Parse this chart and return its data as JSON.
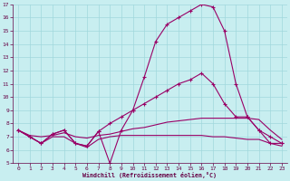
{
  "xlabel": "Windchill (Refroidissement éolien,°C)",
  "background_color": "#c8eef0",
  "line_color": "#990066",
  "grid_color": "#a0d8dc",
  "xlim": [
    -0.5,
    23.5
  ],
  "ylim": [
    5,
    17
  ],
  "xticks": [
    0,
    1,
    2,
    3,
    4,
    5,
    6,
    7,
    8,
    9,
    10,
    11,
    12,
    13,
    14,
    15,
    16,
    17,
    18,
    19,
    20,
    21,
    22,
    23
  ],
  "yticks": [
    5,
    6,
    7,
    8,
    9,
    10,
    11,
    12,
    13,
    14,
    15,
    16,
    17
  ],
  "curve_peak_x": [
    0,
    1,
    2,
    3,
    4,
    5,
    6,
    7,
    8,
    9,
    10,
    11,
    12,
    13,
    14,
    15,
    16,
    17,
    18,
    19,
    20,
    21,
    22,
    23
  ],
  "curve_peak_y": [
    7.5,
    7.0,
    6.5,
    7.2,
    7.5,
    6.5,
    6.3,
    7.4,
    5.0,
    7.5,
    9.0,
    11.5,
    14.2,
    15.5,
    16.0,
    16.5,
    17.0,
    16.8,
    15.0,
    11.0,
    8.5,
    7.5,
    7.0,
    6.5
  ],
  "curve_mid_x": [
    0,
    1,
    2,
    3,
    4,
    5,
    6,
    7,
    8,
    9,
    10,
    11,
    12,
    13,
    14,
    15,
    16,
    17,
    18,
    19,
    20,
    21,
    22,
    23
  ],
  "curve_mid_y": [
    7.5,
    7.0,
    6.5,
    7.2,
    7.5,
    6.5,
    6.3,
    7.4,
    8.0,
    8.5,
    9.0,
    9.5,
    10.0,
    10.5,
    11.0,
    11.3,
    11.8,
    11.0,
    9.5,
    8.5,
    8.5,
    7.5,
    6.5,
    6.5
  ],
  "curve_upper_x": [
    0,
    1,
    2,
    3,
    4,
    5,
    6,
    7,
    8,
    9,
    10,
    11,
    12,
    13,
    14,
    15,
    16,
    17,
    18,
    19,
    20,
    21,
    22,
    23
  ],
  "curve_upper_y": [
    7.5,
    7.1,
    7.0,
    7.1,
    7.3,
    7.0,
    6.9,
    7.1,
    7.2,
    7.4,
    7.6,
    7.7,
    7.9,
    8.1,
    8.2,
    8.3,
    8.4,
    8.4,
    8.4,
    8.4,
    8.4,
    8.3,
    7.5,
    6.8
  ],
  "curve_lower_x": [
    0,
    1,
    2,
    3,
    4,
    5,
    6,
    7,
    8,
    9,
    10,
    11,
    12,
    13,
    14,
    15,
    16,
    17,
    18,
    19,
    20,
    21,
    22,
    23
  ],
  "curve_lower_y": [
    7.5,
    7.0,
    6.5,
    7.0,
    7.0,
    6.5,
    6.2,
    6.8,
    7.0,
    7.1,
    7.1,
    7.1,
    7.1,
    7.1,
    7.1,
    7.1,
    7.1,
    7.0,
    7.0,
    6.9,
    6.8,
    6.8,
    6.5,
    6.3
  ]
}
